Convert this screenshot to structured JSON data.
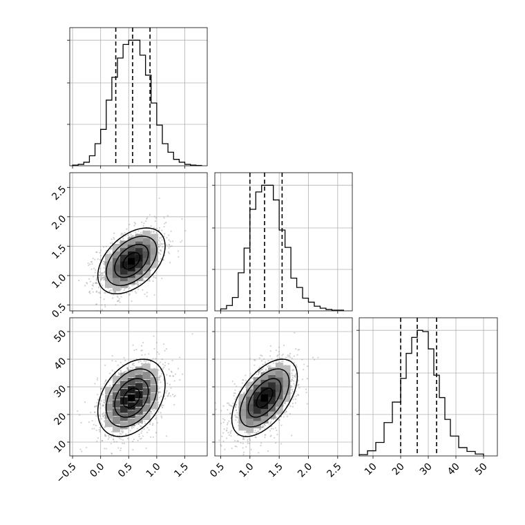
{
  "chart_data": {
    "type": "corner",
    "grid": true,
    "parameters": [
      {
        "ticks": [
          "−0.5",
          "0.0",
          "0.5",
          "1.0",
          "1.5"
        ],
        "tick_values": [
          -0.5,
          0.0,
          0.5,
          1.0,
          1.5
        ],
        "range": [
          -0.55,
          1.9
        ],
        "quantiles": [
          0.27,
          0.57,
          0.88
        ]
      },
      {
        "ticks": [
          "0.5",
          "1.0",
          "1.5",
          "2.0",
          "2.5"
        ],
        "tick_values": [
          0.5,
          1.0,
          1.5,
          2.0,
          2.5
        ],
        "range": [
          0.4,
          2.75
        ],
        "quantiles": [
          1.0,
          1.25,
          1.55
        ]
      },
      {
        "ticks": [
          "10",
          "20",
          "30",
          "40",
          "50"
        ],
        "tick_values": [
          10,
          20,
          30,
          40,
          50
        ],
        "range": [
          5,
          55
        ],
        "quantiles": [
          20,
          26,
          33
        ]
      }
    ],
    "histograms": [
      {
        "bin_edges": [
          -0.5,
          -0.4,
          -0.3,
          -0.2,
          -0.1,
          0.0,
          0.1,
          0.2,
          0.3,
          0.4,
          0.5,
          0.6,
          0.7,
          0.8,
          0.9,
          1.0,
          1.1,
          1.2,
          1.3,
          1.4,
          1.5,
          1.6,
          1.7,
          1.8
        ],
        "counts": [
          1,
          2,
          5,
          14,
          31,
          51,
          92,
          124,
          151,
          170,
          176,
          176,
          155,
          127,
          88,
          57,
          31,
          19,
          9,
          5,
          2,
          1,
          0.5
        ]
      },
      {
        "bin_edges": [
          0.5,
          0.6,
          0.7,
          0.8,
          0.9,
          1.0,
          1.1,
          1.2,
          1.3,
          1.4,
          1.5,
          1.6,
          1.7,
          1.8,
          1.9,
          2.0,
          2.1,
          2.2,
          2.3,
          2.4,
          2.5,
          2.6
        ],
        "counts": [
          3,
          8,
          20,
          57,
          94,
          152,
          178,
          188,
          188,
          166,
          121,
          95,
          49,
          35,
          19,
          13,
          7,
          4,
          2,
          1,
          1
        ]
      },
      {
        "bin_edges": [
          5,
          8,
          11,
          14,
          17,
          20,
          22,
          24,
          26,
          28,
          30,
          32,
          34,
          36,
          38,
          41,
          44,
          47,
          50
        ],
        "counts": [
          2,
          8,
          21,
          52,
          84,
          121,
          160,
          185,
          196,
          194,
          167,
          126,
          91,
          57,
          31,
          13,
          7,
          3
        ]
      }
    ],
    "pairs": [
      {
        "x_param": 0,
        "y_param": 1,
        "mean": [
          0.55,
          1.25
        ],
        "sd": [
          0.3,
          0.28
        ],
        "rho": 0.45
      },
      {
        "x_param": 0,
        "y_param": 2,
        "mean": [
          0.55,
          26
        ],
        "sd": [
          0.3,
          7
        ],
        "rho": 0.35
      },
      {
        "x_param": 1,
        "y_param": 2,
        "mean": [
          1.25,
          26
        ],
        "sd": [
          0.28,
          7
        ],
        "rho": 0.55
      }
    ]
  }
}
